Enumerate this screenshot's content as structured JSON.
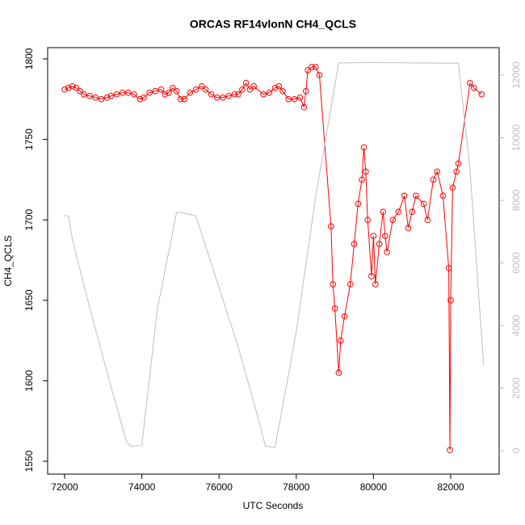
{
  "chart_data": {
    "type": "line",
    "title": "ORCAS RF14vlonN CH4_QCLS",
    "xlabel": "UTC Seconds",
    "ylabel": "CH4_QCLS",
    "xlim": [
      71561,
      83255
    ],
    "ylim": [
      1542,
      1807
    ],
    "y2lim": [
      -748,
      12877
    ],
    "xticks": [
      72000,
      74000,
      76000,
      78000,
      80000,
      82000
    ],
    "yticks": [
      1550,
      1600,
      1650,
      1700,
      1750,
      1800
    ],
    "y2ticks": [
      0,
      2000,
      4000,
      6000,
      8000,
      10000,
      12000
    ],
    "series": [
      {
        "color": "#ff0000",
        "markers": true,
        "x": [
          72000,
          72100,
          72200,
          72300,
          72400,
          72500,
          72650,
          72800,
          72950,
          73100,
          73200,
          73350,
          73500,
          73650,
          73800,
          73950,
          74050,
          74200,
          74350,
          74500,
          74600,
          74700,
          74800,
          74900,
          75000,
          75100,
          75250,
          75400,
          75550,
          75650,
          75800,
          75950,
          76100,
          76250,
          76400,
          76500,
          76600,
          76700,
          76800,
          76900,
          77150,
          77300,
          77450,
          77550,
          77650,
          77800,
          77950,
          78100,
          78200,
          78250,
          78300,
          78400,
          78500,
          78600,
          78900,
          78950,
          79000,
          79100,
          79150,
          79250,
          79400,
          79500,
          79600,
          79700,
          79750,
          79800,
          79850,
          79950,
          80000,
          80050,
          80150,
          80250,
          80300,
          80350,
          80500,
          80650,
          80800,
          80900,
          81000,
          81100,
          81300,
          81400,
          81550,
          81650,
          81800,
          81950,
          81980,
          82000,
          82050,
          82150,
          82200,
          82500,
          82600,
          82800
        ],
        "values": [
          1781,
          1782,
          1783,
          1782,
          1780,
          1778,
          1777,
          1776,
          1775,
          1776,
          1777,
          1778,
          1779,
          1779,
          1778,
          1775,
          1776,
          1779,
          1780,
          1781,
          1778,
          1779,
          1782,
          1780,
          1775,
          1775,
          1779,
          1781,
          1783,
          1781,
          1778,
          1776,
          1776,
          1777,
          1778,
          1778,
          1781,
          1785,
          1781,
          1783,
          1778,
          1779,
          1782,
          1783,
          1780,
          1775,
          1775,
          1776,
          1770,
          1780,
          1793,
          1795,
          1795,
          1790,
          1696,
          1660,
          1645,
          1605,
          1625,
          1640,
          1660,
          1685,
          1710,
          1725,
          1745,
          1730,
          1700,
          1665,
          1690,
          1660,
          1685,
          1705,
          1690,
          1680,
          1700,
          1705,
          1715,
          1695,
          1705,
          1715,
          1710,
          1700,
          1725,
          1730,
          1715,
          1670,
          1557,
          1650,
          1720,
          1730,
          1735,
          1785,
          1782,
          1778
        ]
      },
      {
        "color": "#bebebe",
        "axis": "y2",
        "x": [
          72000,
          72100,
          72200,
          72600,
          73100,
          73600,
          73700,
          74000,
          74050,
          74400,
          74900,
          75000,
          75400,
          76500,
          77000,
          77200,
          77450,
          78000,
          78500,
          79100,
          80000,
          81000,
          82200,
          82500,
          82850
        ],
        "values": [
          7510,
          7500,
          6760,
          4800,
          2500,
          300,
          150,
          160,
          720,
          4500,
          7610,
          7620,
          7500,
          3300,
          1100,
          150,
          100,
          3800,
          8100,
          12390,
          12400,
          12390,
          12380,
          9000,
          2740
        ]
      }
    ]
  }
}
